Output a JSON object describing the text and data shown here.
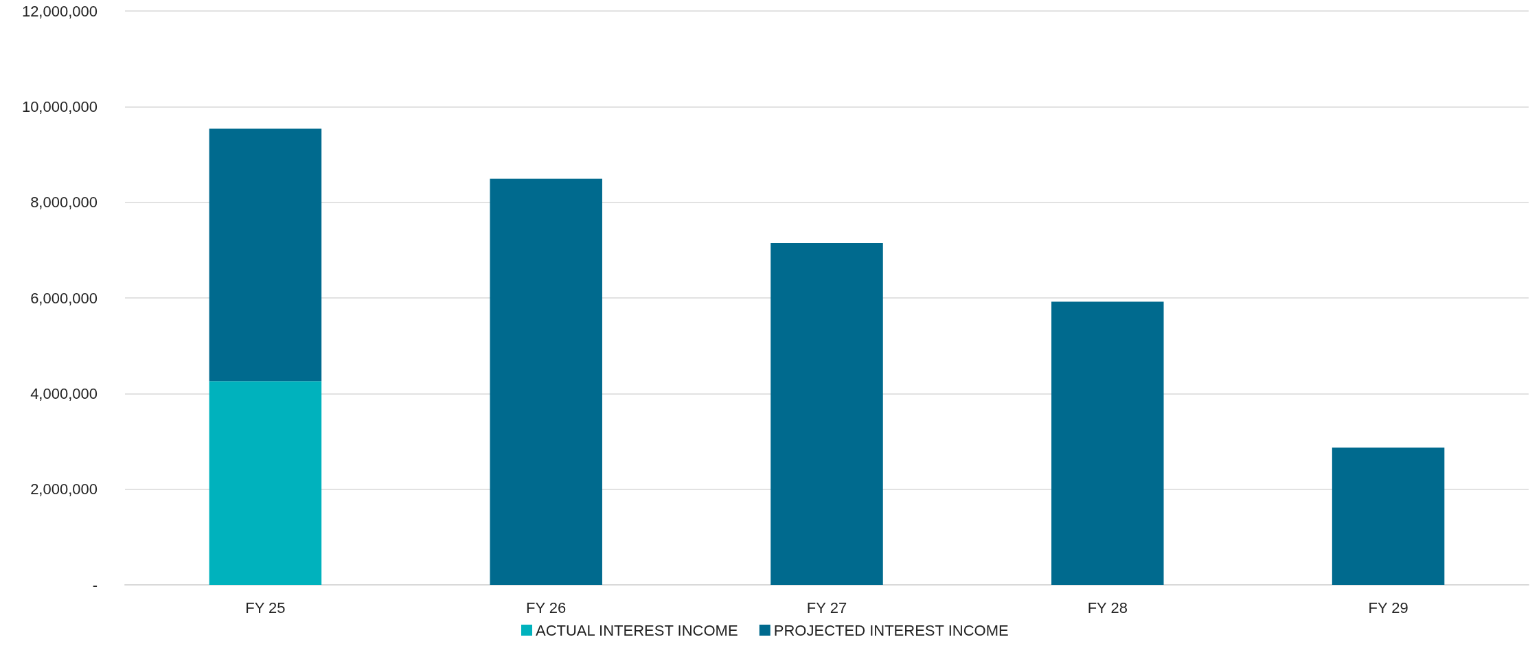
{
  "chart_data": {
    "type": "bar",
    "stacked": true,
    "categories": [
      "FY 25",
      "FY 26",
      "FY 27",
      "FY 28",
      "FY 29"
    ],
    "series": [
      {
        "name": "ACTUAL INTEREST INCOME",
        "color": "#00b2bd",
        "values": [
          4260000,
          null,
          null,
          null,
          null
        ]
      },
      {
        "name": "PROJECTED INTEREST INCOME",
        "color": "#006a8e",
        "values": [
          5280000,
          8490000,
          7150000,
          5920000,
          2870000
        ]
      }
    ],
    "ylim": [
      0,
      12000000
    ],
    "yticks": [
      {
        "value": 0,
        "label": "-"
      },
      {
        "value": 2000000,
        "label": "2,000,000"
      },
      {
        "value": 4000000,
        "label": "4,000,000"
      },
      {
        "value": 6000000,
        "label": "6,000,000"
      },
      {
        "value": 8000000,
        "label": "8,000,000"
      },
      {
        "value": 10000000,
        "label": "10,000,000"
      },
      {
        "value": 12000000,
        "label": "12,000,000"
      }
    ],
    "grid": "y",
    "legend": "bottom"
  }
}
